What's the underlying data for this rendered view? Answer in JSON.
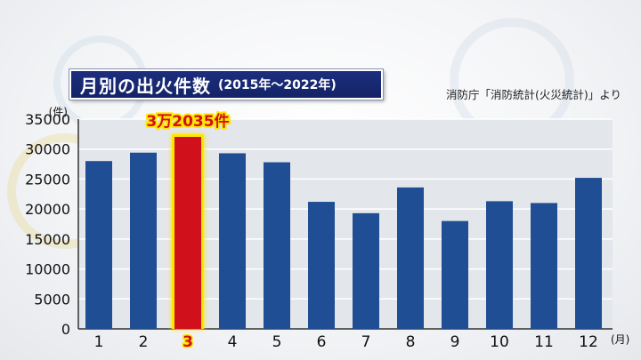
{
  "header": {
    "title": "月別の出火件数",
    "period": "(2015年～2022年)",
    "source": "消防庁「消防統計(火災統計)」より"
  },
  "chart_data": {
    "type": "bar",
    "title": "月別の出火件数",
    "y_unit": "(件)",
    "x_unit": "(月)",
    "categories": [
      "1",
      "2",
      "3",
      "4",
      "5",
      "6",
      "7",
      "8",
      "9",
      "10",
      "11",
      "12"
    ],
    "values": [
      28000,
      29400,
      32035,
      29300,
      27800,
      21200,
      19300,
      23600,
      18000,
      21300,
      21000,
      25200
    ],
    "highlight_index": 2,
    "highlight_label": "3万2035件",
    "ylim": [
      0,
      35000
    ],
    "yticks": [
      0,
      5000,
      10000,
      15000,
      20000,
      25000,
      30000,
      35000
    ],
    "grid": true,
    "colors": {
      "bar": "#1f4e94",
      "highlight_bar": "#d0101a",
      "highlight_glow": "#ffe600",
      "plot_bg": "#e3e6eb",
      "grid": "#ffffff",
      "title_bg": "#1a2b78"
    }
  }
}
